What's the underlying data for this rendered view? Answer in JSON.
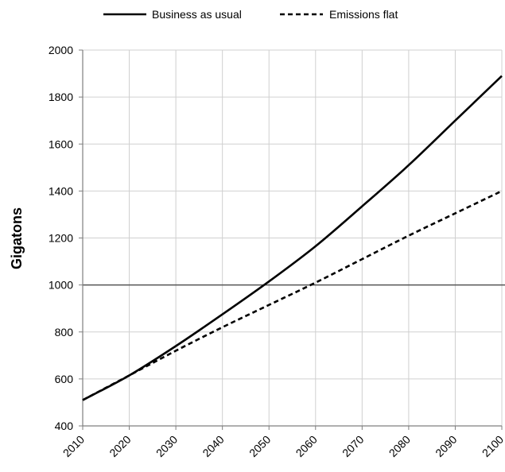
{
  "chart_data": {
    "type": "line",
    "title": "",
    "xlabel": "",
    "ylabel": "Gigatons",
    "x": [
      2010,
      2020,
      2030,
      2040,
      2050,
      2060,
      2070,
      2080,
      2090,
      2100
    ],
    "xlim": [
      2010,
      2100
    ],
    "ylim": [
      400,
      2000
    ],
    "yticks": [
      400,
      600,
      800,
      1000,
      1200,
      1400,
      1600,
      1800,
      2000
    ],
    "xticks": [
      "2010",
      "2020",
      "2030",
      "2040",
      "2050",
      "2060",
      "2070",
      "2080",
      "2090",
      "2100"
    ],
    "ytick_labels": [
      "400",
      "600",
      "800",
      "1000",
      "1200",
      "1400",
      "1600",
      "1800",
      "2000"
    ],
    "grid": true,
    "legend_position": "top",
    "reference_line": 1000,
    "series": [
      {
        "name": "Business as usual",
        "style": "solid",
        "color": "#000000",
        "values": [
          510,
          615,
          740,
          875,
          1015,
          1165,
          1335,
          1510,
          1700,
          1890
        ]
      },
      {
        "name": "Emissions flat",
        "style": "dashed",
        "color": "#000000",
        "values": [
          510,
          615,
          720,
          820,
          915,
          1010,
          1110,
          1210,
          1305,
          1400
        ]
      }
    ]
  }
}
